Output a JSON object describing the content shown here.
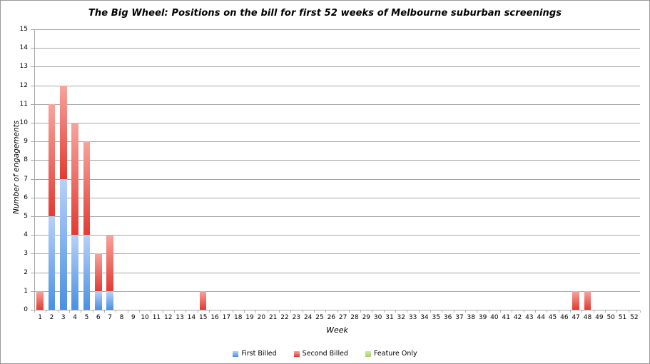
{
  "frame": {
    "background": "#ffffff",
    "border_color": "#999999",
    "gridline_color": "#a6a6a6",
    "axis_color": "#a6a6a6",
    "tick_mark_color": "#b3b3b3",
    "text_color": "#000000"
  },
  "chart_data": {
    "type": "bar",
    "stacked": true,
    "title": "The Big Wheel: Positions on the bill for first 52 weeks of Melbourne suburban screenings",
    "xlabel": "Week",
    "ylabel": "Number of engagements",
    "ylim": [
      0,
      15
    ],
    "ytick_step": 1,
    "grid": true,
    "legend_position": "bottom",
    "categories": [
      1,
      2,
      3,
      4,
      5,
      6,
      7,
      8,
      9,
      10,
      11,
      12,
      13,
      14,
      15,
      16,
      17,
      18,
      19,
      20,
      21,
      22,
      23,
      24,
      25,
      26,
      27,
      28,
      29,
      30,
      31,
      32,
      33,
      34,
      35,
      36,
      37,
      38,
      39,
      40,
      41,
      42,
      43,
      44,
      45,
      46,
      47,
      48,
      49,
      50,
      51,
      52
    ],
    "series": [
      {
        "name": "First Billed",
        "color_top": "#b7d1fb",
        "color_bottom": "#4a90e2",
        "values": [
          0,
          5,
          7,
          4,
          4,
          1,
          1,
          0,
          0,
          0,
          0,
          0,
          0,
          0,
          0,
          0,
          0,
          0,
          0,
          0,
          0,
          0,
          0,
          0,
          0,
          0,
          0,
          0,
          0,
          0,
          0,
          0,
          0,
          0,
          0,
          0,
          0,
          0,
          0,
          0,
          0,
          0,
          0,
          0,
          0,
          0,
          0,
          0,
          0,
          0,
          0,
          0
        ]
      },
      {
        "name": "Second Billed",
        "color_top": "#f8a39d",
        "color_bottom": "#e23b32",
        "values": [
          1,
          6,
          5,
          6,
          5,
          2,
          3,
          0,
          0,
          0,
          0,
          0,
          0,
          0,
          1,
          0,
          0,
          0,
          0,
          0,
          0,
          0,
          0,
          0,
          0,
          0,
          0,
          0,
          0,
          0,
          0,
          0,
          0,
          0,
          0,
          0,
          0,
          0,
          0,
          0,
          0,
          0,
          0,
          0,
          0,
          0,
          1,
          1,
          0,
          0,
          0,
          0
        ]
      },
      {
        "name": "Feature Only",
        "color_top": "#d3eba6",
        "color_bottom": "#a8d166",
        "values": [
          0,
          0,
          0,
          0,
          0,
          0,
          0,
          0,
          0,
          0,
          0,
          0,
          0,
          0,
          0,
          0,
          0,
          0,
          0,
          0,
          0,
          0,
          0,
          0,
          0,
          0,
          0,
          0,
          0,
          0,
          0,
          0,
          0,
          0,
          0,
          0,
          0,
          0,
          0,
          0,
          0,
          0,
          0,
          0,
          0,
          0,
          0,
          0,
          0,
          0,
          0,
          0
        ]
      }
    ]
  }
}
